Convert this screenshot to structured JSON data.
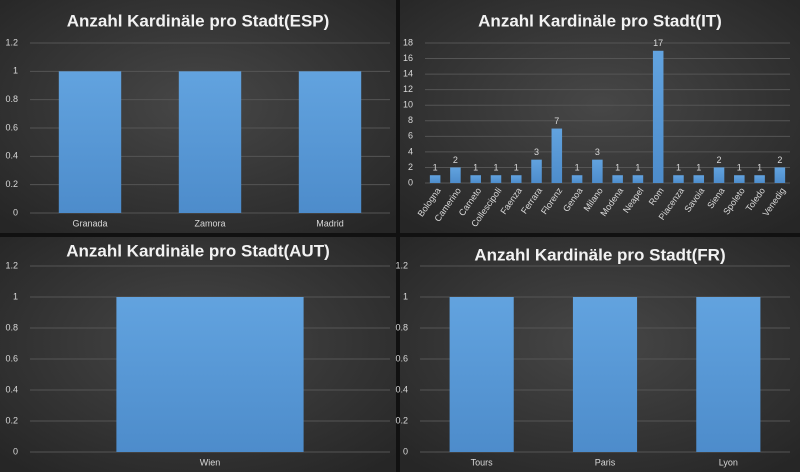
{
  "chart_data": [
    {
      "type": "bar",
      "title": "Anzahl Kardinäle pro Stadt(ESP)",
      "categories": [
        "Granada",
        "Zamora",
        "Madrid"
      ],
      "values": [
        1,
        1,
        1
      ],
      "color": "#5b9bd5",
      "ylim": [
        0,
        1.2
      ],
      "yticks": [
        0,
        0.2,
        0.4,
        0.6,
        0.8,
        1,
        1.2
      ],
      "grid": true
    },
    {
      "type": "bar",
      "title": "Anzahl Kardinäle pro Stadt(IT)",
      "categories": [
        "Bologna",
        "Camerino",
        "Carneto",
        "Collescipoli",
        "Faenza",
        "Ferrara",
        "Florenz",
        "Genoa",
        "Milano",
        "Modena",
        "Neapel",
        "Rom",
        "Piacenza",
        "Savoia",
        "Siena",
        "Spoleto",
        "Toledo",
        "Venedig"
      ],
      "values": [
        1,
        2,
        1,
        1,
        1,
        3,
        7,
        1,
        3,
        1,
        1,
        17,
        1,
        1,
        2,
        1,
        1,
        2
      ],
      "color": "#5b9bd5",
      "ylim": [
        0,
        18
      ],
      "yticks": [
        0,
        2,
        4,
        6,
        8,
        10,
        12,
        14,
        16,
        18
      ],
      "grid": true,
      "data_labels": true
    },
    {
      "type": "bar",
      "title": "Anzahl Kardinäle pro Stadt(AUT)",
      "categories": [
        "Wien"
      ],
      "values": [
        1
      ],
      "color": "#5b9bd5",
      "ylim": [
        0,
        1.2
      ],
      "yticks": [
        0,
        0.2,
        0.4,
        0.6,
        0.8,
        1,
        1.2
      ],
      "grid": true
    },
    {
      "type": "bar",
      "title": "Anzahl Kardinäle pro Stadt(FR)",
      "categories": [
        "Tours",
        "Paris",
        "Lyon"
      ],
      "values": [
        1,
        1,
        1
      ],
      "color": "#5b9bd5",
      "ylim": [
        0,
        1.2
      ],
      "yticks": [
        0,
        0.2,
        0.4,
        0.6,
        0.8,
        1,
        1.2
      ],
      "grid": true
    }
  ]
}
